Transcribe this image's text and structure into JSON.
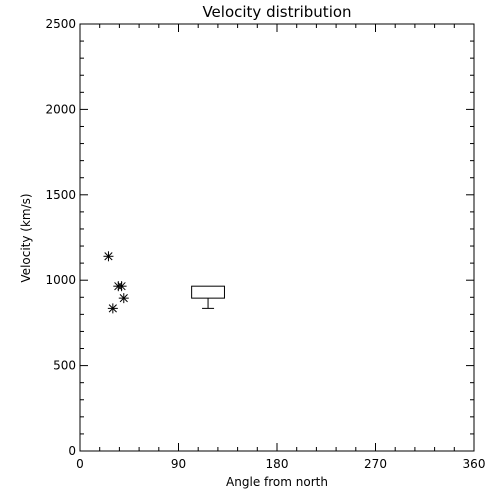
{
  "chart_data": {
    "type": "scatter",
    "title": "Velocity distribution",
    "xlabel": "Angle from north",
    "ylabel": "Velocity (km/s)",
    "xlim": [
      0,
      360
    ],
    "ylim": [
      0,
      2500
    ],
    "x_ticks": [
      0,
      90,
      180,
      270,
      360
    ],
    "y_ticks": [
      0,
      500,
      1000,
      1500,
      2000,
      2500
    ],
    "x_tick_labels": [
      "0",
      "90",
      "180",
      "270",
      "360"
    ],
    "y_tick_labels": [
      "0",
      "500",
      "1000",
      "1500",
      "2000",
      "2500"
    ],
    "grid": false,
    "series": [
      {
        "marker": "asterisk",
        "points": [
          {
            "x": 26,
            "y": 1140
          },
          {
            "x": 35,
            "y": 965
          },
          {
            "x": 38,
            "y": 965
          },
          {
            "x": 40,
            "y": 895
          },
          {
            "x": 30,
            "y": 835
          }
        ]
      }
    ],
    "boxplot": {
      "x_range": [
        102,
        132
      ],
      "q1": 895,
      "q3": 965,
      "whisker_low": 835,
      "whisker_high": 965
    },
    "colors": {
      "foreground": "#000000",
      "background": "#ffffff"
    }
  }
}
